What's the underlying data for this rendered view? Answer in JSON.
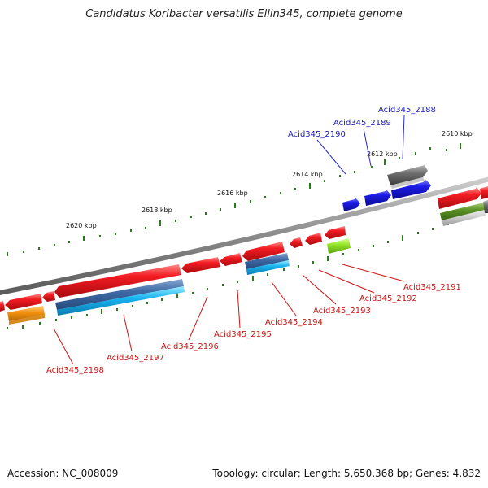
{
  "title": "Candidatus Koribacter versatilis Ellin345, complete genome",
  "footer": {
    "accession": "Accession: NC_008009",
    "topology": "Topology: circular; Length: 5,650,368 bp; Genes: 4,832"
  },
  "colors": {
    "backbone": "#8a8a8a",
    "red": "#e8161c",
    "blue": "#1c1ce8",
    "gray": "#6e6e6e",
    "tick_green": "#2a7a1e",
    "label_top": "#1a1ab4",
    "label_bot": "#c81414",
    "leader_top": "#2a2ad0",
    "leader_bot": "#d01414"
  },
  "ticks": [
    {
      "label": "2610 kbp"
    },
    {
      "label": "2612 kbp"
    },
    {
      "label": "2614 kbp"
    },
    {
      "label": "2616 kbp"
    },
    {
      "label": "2618 kbp"
    },
    {
      "label": "2620 kbp"
    }
  ],
  "genes_top": [
    {
      "label": "Acid345_2188"
    },
    {
      "label": "Acid345_2189"
    },
    {
      "label": "Acid345_2190"
    }
  ],
  "genes_bottom": [
    {
      "label": "Acid345_2191"
    },
    {
      "label": "Acid345_2192"
    },
    {
      "label": "Acid345_2193"
    },
    {
      "label": "Acid345_2194"
    },
    {
      "label": "Acid345_2195"
    },
    {
      "label": "Acid345_2196"
    },
    {
      "label": "Acid345_2197"
    },
    {
      "label": "Acid345_2198"
    }
  ]
}
